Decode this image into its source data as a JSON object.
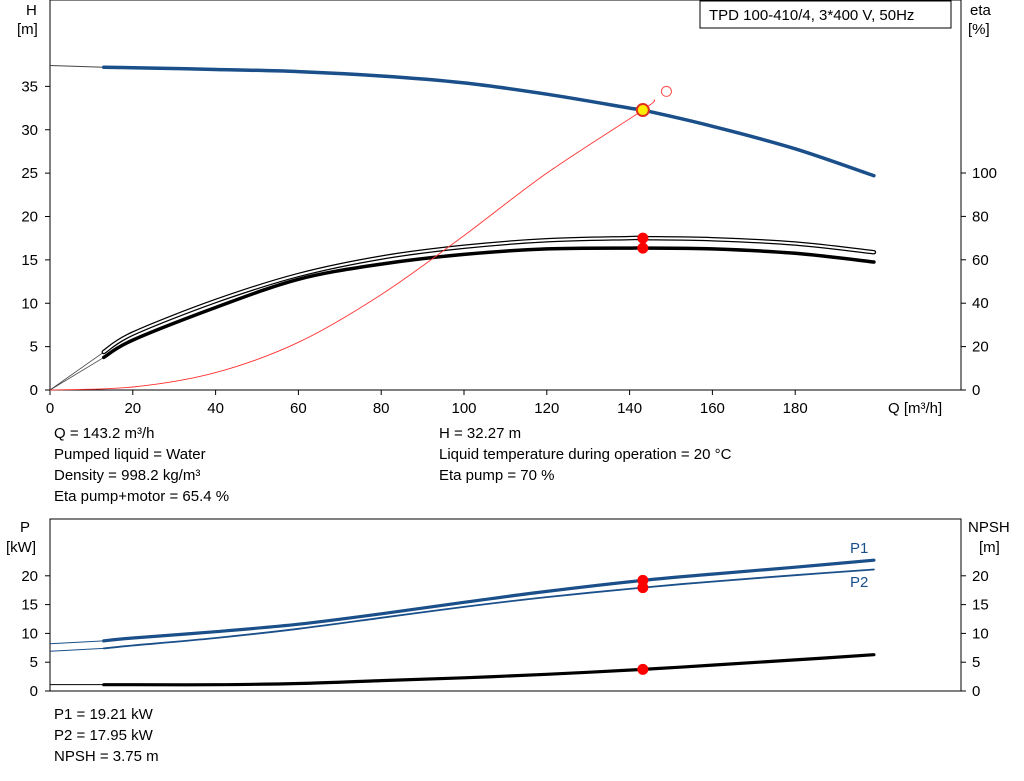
{
  "main_chart": {
    "title_box": "TPD 100-410/4, 3*400 V, 50Hz",
    "left_axis_label": "H",
    "left_axis_unit": "[m]",
    "right_axis_label": "eta",
    "right_axis_unit": "[%]",
    "x_axis_label": "Q [m³/h]",
    "x_ticks": [
      "0",
      "20",
      "40",
      "60",
      "80",
      "100",
      "120",
      "140",
      "160",
      "180"
    ],
    "h_ticks": [
      "0",
      "5",
      "10",
      "15",
      "20",
      "25",
      "30",
      "35"
    ],
    "eta_ticks": [
      "0",
      "20",
      "40",
      "60",
      "80",
      "100"
    ]
  },
  "power_chart": {
    "left_axis_label": "P",
    "left_axis_unit": "[kW]",
    "right_axis_label": "NPSH",
    "right_axis_unit": "[m]",
    "p_ticks": [
      "0",
      "5",
      "10",
      "15",
      "20"
    ],
    "npsh_ticks": [
      "0",
      "5",
      "10",
      "15",
      "20"
    ],
    "p1_label": "P1",
    "p2_label": "P2"
  },
  "operating_point": {
    "left": [
      "Q = 143.2 m³/h",
      "Pumped liquid = Water",
      "Density = 998.2 kg/m³",
      "Eta pump+motor = 65.4 %"
    ],
    "right": [
      "H = 32.27 m",
      "Liquid temperature during operation = 20 °C",
      "Eta pump = 70 %"
    ]
  },
  "power_point": [
    "P1 = 19.21 kW",
    "P2 = 17.95 kW",
    "NPSH = 3.75 m"
  ],
  "colors": {
    "head_curve": "#1a4f8a",
    "power_curve": "#1a4f8a",
    "efficiency_curve": "#000000",
    "system_curve": "#ff3333",
    "duty_point": "#ff0000",
    "duty_point_head_fill": "#ffee00"
  },
  "chart_data": [
    {
      "type": "line",
      "x_range": [
        0,
        200
      ],
      "y_left_range": [
        0,
        40
      ],
      "y_right_range": [
        0,
        100
      ],
      "duty_q": 143.2,
      "series": [
        {
          "axis": "left",
          "style": "head",
          "x": [
            0,
            13,
            20,
            40,
            60,
            80,
            100,
            120,
            140,
            143.2,
            160,
            180,
            199
          ],
          "values": [
            37.4,
            37.2,
            37.15,
            36.95,
            36.7,
            36.2,
            35.4,
            34.1,
            32.5,
            32.27,
            30.4,
            27.8,
            24.7
          ]
        },
        {
          "axis": "right",
          "style": "eta_upper",
          "x": [
            13,
            20,
            40,
            60,
            80,
            100,
            120,
            140,
            143.2,
            160,
            180,
            199
          ],
          "values": [
            17.5,
            26,
            41,
            53,
            61,
            66,
            69,
            70,
            70,
            69.5,
            67.5,
            63.5
          ]
        },
        {
          "axis": "right",
          "style": "eta_lower",
          "x": [
            13,
            20,
            40,
            60,
            80,
            100,
            120,
            140,
            143.2,
            160,
            180,
            199
          ],
          "values": [
            15,
            23,
            38,
            51,
            58,
            62.5,
            65,
            65.4,
            65.4,
            65,
            63,
            59
          ]
        },
        {
          "axis": "left",
          "style": "system",
          "x": [
            0,
            20,
            40,
            60,
            80,
            100,
            120,
            143.2,
            146
          ],
          "values": [
            0,
            0.35,
            2.0,
            5.5,
            11.0,
            17.8,
            25.0,
            32.27,
            33.5
          ]
        }
      ],
      "points": [
        {
          "axis": "left",
          "x": 143.2,
          "y": 32.27,
          "style": "head_point"
        },
        {
          "axis": "left",
          "x": 146,
          "y": 33.5,
          "style": "open_point"
        },
        {
          "axis": "right",
          "x": 143.2,
          "y": 70,
          "style": "point"
        },
        {
          "axis": "right",
          "x": 143.2,
          "y": 65.4,
          "style": "point"
        }
      ]
    },
    {
      "type": "line",
      "x_range": [
        0,
        200
      ],
      "y_left_range": [
        0,
        25
      ],
      "y_right_range": [
        0,
        25
      ],
      "series": [
        {
          "name": "P1",
          "axis": "left",
          "style": "p1",
          "x": [
            0,
            13,
            20,
            40,
            60,
            80,
            100,
            120,
            143.2,
            160,
            180,
            199
          ],
          "values": [
            8.2,
            8.7,
            9.2,
            10.3,
            11.6,
            13.4,
            15.4,
            17.3,
            19.21,
            20.3,
            21.5,
            22.7
          ]
        },
        {
          "name": "P2",
          "axis": "left",
          "style": "p2",
          "x": [
            0,
            13,
            20,
            40,
            60,
            80,
            100,
            120,
            143.2,
            160,
            180,
            199
          ],
          "values": [
            6.9,
            7.4,
            7.9,
            9.2,
            10.8,
            12.7,
            14.6,
            16.3,
            17.95,
            19.0,
            20.1,
            21.1
          ]
        },
        {
          "axis": "right",
          "style": "npsh",
          "x": [
            0,
            13,
            20,
            40,
            60,
            80,
            100,
            120,
            143.2,
            160,
            180,
            199
          ],
          "values": [
            1.1,
            1.1,
            1.1,
            1.1,
            1.3,
            1.8,
            2.3,
            2.9,
            3.75,
            4.5,
            5.4,
            6.3
          ]
        }
      ],
      "points": [
        {
          "axis": "left",
          "x": 143.2,
          "y": 19.21,
          "style": "point"
        },
        {
          "axis": "left",
          "x": 143.2,
          "y": 17.95,
          "style": "point"
        },
        {
          "axis": "right",
          "x": 143.2,
          "y": 3.75,
          "style": "point"
        }
      ]
    }
  ]
}
